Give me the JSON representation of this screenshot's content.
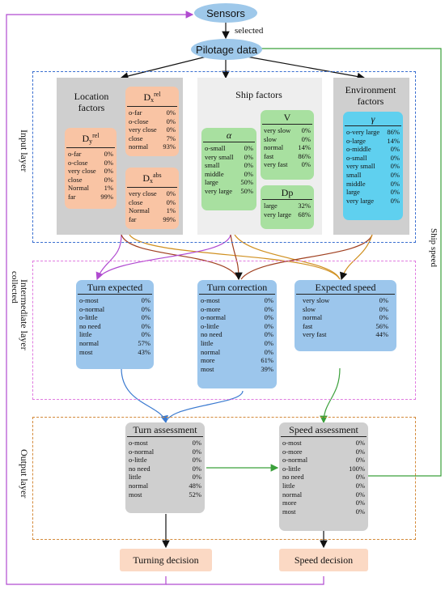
{
  "nodes": {
    "sensors": "Sensors",
    "pilotage": "Pilotage data",
    "selected": "selected",
    "collected": "collected",
    "ship_speed": "Ship speed"
  },
  "layers": {
    "input": "Input layer",
    "intermediate": "Intermediate layer",
    "output": "Output layer"
  },
  "groups": {
    "location": "Location factors",
    "ship": "Ship factors",
    "environment": "Environment factors"
  },
  "dxrel": {
    "sym": "D",
    "sub": "x",
    "sup": "rel",
    "rows": [
      [
        "o-far",
        "0%"
      ],
      [
        "o-close",
        "0%"
      ],
      [
        "very close",
        "0%"
      ],
      [
        "close",
        "7%"
      ],
      [
        "normal",
        "93%"
      ]
    ]
  },
  "dyrel": {
    "sym": "D",
    "sub": "y",
    "sup": "rel",
    "rows": [
      [
        "o-far",
        "0%"
      ],
      [
        "o-close",
        "0%"
      ],
      [
        "very close",
        "0%"
      ],
      [
        "close",
        "0%"
      ],
      [
        "Normal",
        "1%"
      ],
      [
        "far",
        "99%"
      ]
    ]
  },
  "dxabs": {
    "sym": "D",
    "sub": "x",
    "sup": "abs",
    "rows": [
      [
        "very close",
        "0%"
      ],
      [
        "close",
        "0%"
      ],
      [
        "Normal",
        "1%"
      ],
      [
        "far",
        "99%"
      ]
    ]
  },
  "alpha": {
    "title": "α",
    "rows": [
      [
        "o-small",
        "0%"
      ],
      [
        "very small",
        "0%"
      ],
      [
        "small",
        "0%"
      ],
      [
        "middle",
        "0%"
      ],
      [
        "large",
        "50%"
      ],
      [
        "very large",
        "50%"
      ]
    ]
  },
  "v": {
    "title": "V",
    "rows": [
      [
        "very slow",
        "0%"
      ],
      [
        "slow",
        "0%"
      ],
      [
        "normal",
        "14%"
      ],
      [
        "fast",
        "86%"
      ],
      [
        "very fast",
        "0%"
      ]
    ]
  },
  "dp": {
    "title": "Dp",
    "rows": [
      [
        "large",
        "32%"
      ],
      [
        "very large",
        "68%"
      ]
    ]
  },
  "gamma": {
    "title": "γ",
    "rows": [
      [
        "o-very large",
        "86%"
      ],
      [
        "o-large",
        "14%"
      ],
      [
        "o-middle",
        "0%"
      ],
      [
        "o-small",
        "0%"
      ],
      [
        "very small",
        "0%"
      ],
      [
        "small",
        "0%"
      ],
      [
        "middle",
        "0%"
      ],
      [
        "large",
        "0%"
      ],
      [
        "very large",
        "0%"
      ]
    ]
  },
  "turn_expected": {
    "title": "Turn expected",
    "rows": [
      [
        "o-most",
        "0%"
      ],
      [
        "o-normal",
        "0%"
      ],
      [
        "o-little",
        "0%"
      ],
      [
        "no need",
        "0%"
      ],
      [
        "little",
        "0%"
      ],
      [
        "normal",
        "57%"
      ],
      [
        "most",
        "43%"
      ]
    ]
  },
  "turn_correction": {
    "title": "Turn correction",
    "rows": [
      [
        "o-most",
        "0%"
      ],
      [
        "o-more",
        "0%"
      ],
      [
        "o-normal",
        "0%"
      ],
      [
        "o-little",
        "0%"
      ],
      [
        "no need",
        "0%"
      ],
      [
        "little",
        "0%"
      ],
      [
        "normal",
        "0%"
      ],
      [
        "more",
        "61%"
      ],
      [
        "most",
        "39%"
      ]
    ]
  },
  "expected_speed": {
    "title": "Expected speed",
    "rows": [
      [
        "very slow",
        "0%"
      ],
      [
        "slow",
        "0%"
      ],
      [
        "normal",
        "0%"
      ],
      [
        "fast",
        "56%"
      ],
      [
        "very fast",
        "44%"
      ]
    ]
  },
  "turn_assessment": {
    "title": "Turn assessment",
    "rows": [
      [
        "o-most",
        "0%"
      ],
      [
        "o-normal",
        "0%"
      ],
      [
        "o-little",
        "0%"
      ],
      [
        "no need",
        "0%"
      ],
      [
        "little",
        "0%"
      ],
      [
        "normal",
        "48%"
      ],
      [
        "most",
        "52%"
      ]
    ]
  },
  "speed_assessment": {
    "title": "Speed assessment",
    "rows": [
      [
        "o-most",
        "0%"
      ],
      [
        "o-more",
        "0%"
      ],
      [
        "o-normal",
        "0%"
      ],
      [
        "o-little",
        "100%"
      ],
      [
        "no need",
        "0%"
      ],
      [
        "little",
        "0%"
      ],
      [
        "normal",
        "0%"
      ],
      [
        "more",
        "0%"
      ],
      [
        "most",
        "0%"
      ]
    ]
  },
  "decisions": {
    "turning": "Turning decision",
    "speed": "Speed decision"
  }
}
